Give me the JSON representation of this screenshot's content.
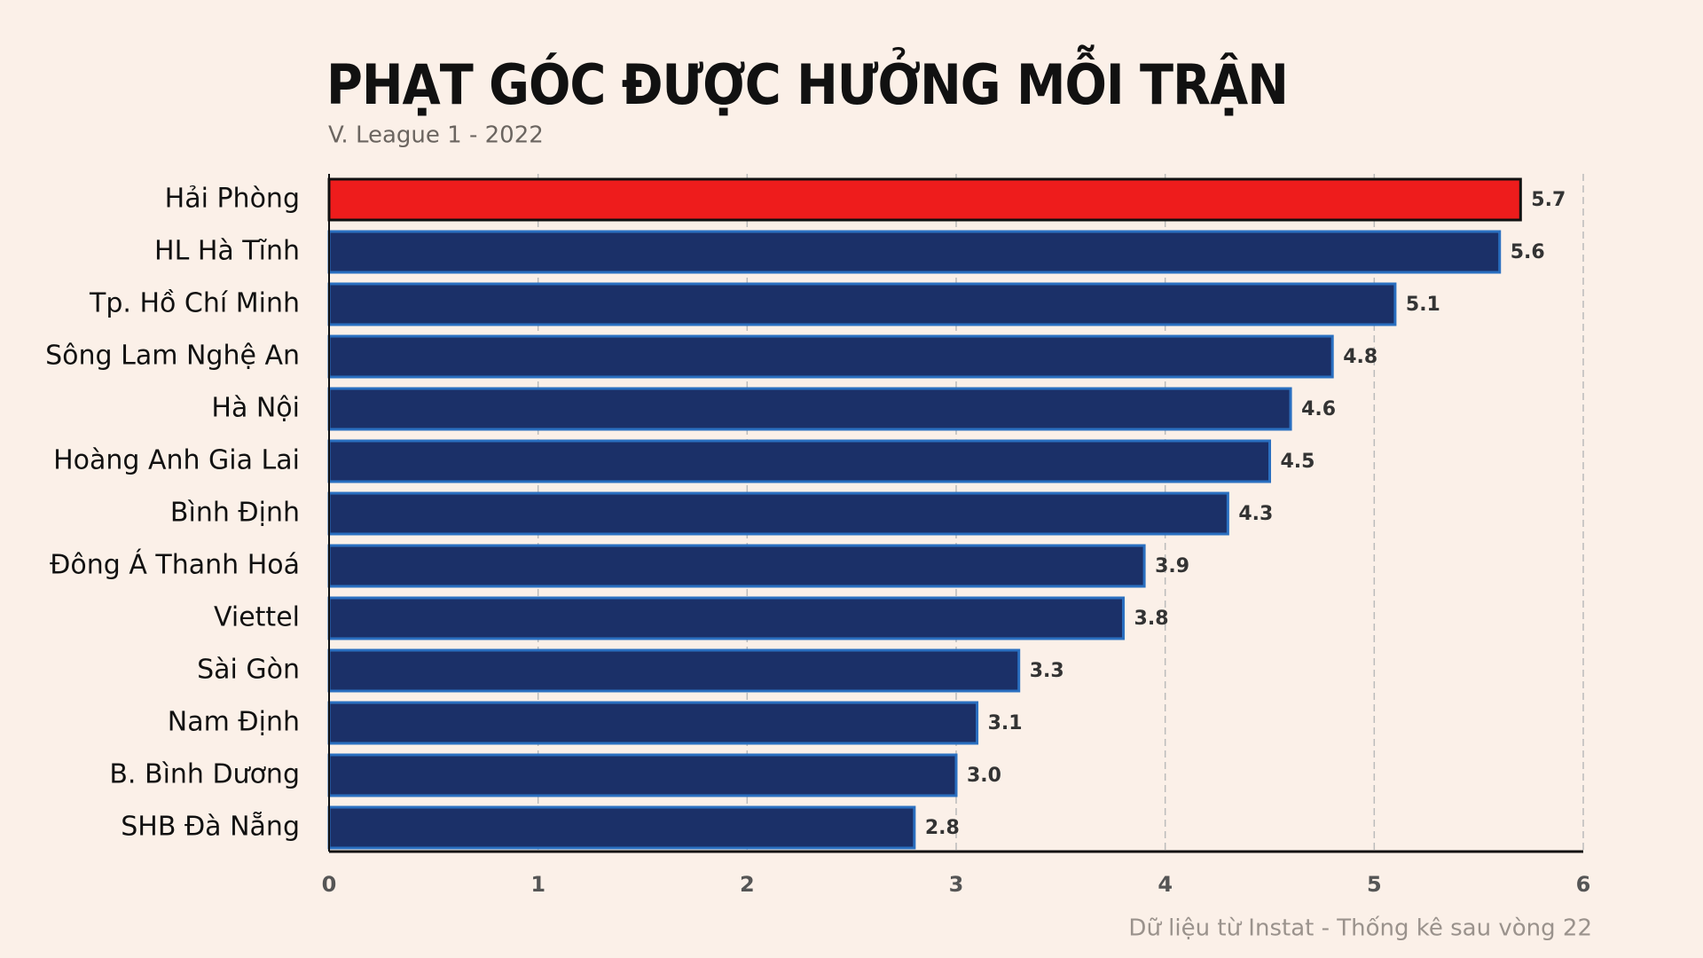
{
  "chart_data": {
    "type": "barh",
    "title": "PHẠT GÓC ĐƯỢC HƯỞNG MỖI TRẬN",
    "subtitle": "V. League 1 - 2022",
    "note": "Dữ liệu từ Instat - Thống kê sau vòng 22",
    "categories": [
      "Hải Phòng",
      "HL Hà Tĩnh",
      "Tp. Hồ Chí Minh",
      "Sông Lam Nghệ An",
      "Hà Nội",
      "Hoàng Anh Gia Lai",
      "Bình Định",
      "Đông Á Thanh Hoá",
      "Viettel",
      "Sài Gòn",
      "Nam Định",
      "B. Bình Dương",
      "SHB Đà Nẵng"
    ],
    "values": [
      5.7,
      5.6,
      5.1,
      4.8,
      4.6,
      4.5,
      4.3,
      3.9,
      3.8,
      3.3,
      3.1,
      3.0,
      2.8
    ],
    "value_labels": [
      "5.7",
      "5.6",
      "5.1",
      "4.8",
      "4.6",
      "4.5",
      "4.3",
      "3.9",
      "3.8",
      "3.3",
      "3.1",
      "3.0",
      "2.8"
    ],
    "colors": [
      "#ee1c1c",
      "#1b3068",
      "#1b3068",
      "#1b3068",
      "#1b3068",
      "#1b3068",
      "#1b3068",
      "#1b3068",
      "#1b3068",
      "#1b3068",
      "#1b3068",
      "#1b3068",
      "#1b3068"
    ],
    "xlim": [
      0,
      6
    ],
    "xticks": [
      0,
      1,
      2,
      3,
      4,
      5,
      6
    ],
    "grid": true
  }
}
